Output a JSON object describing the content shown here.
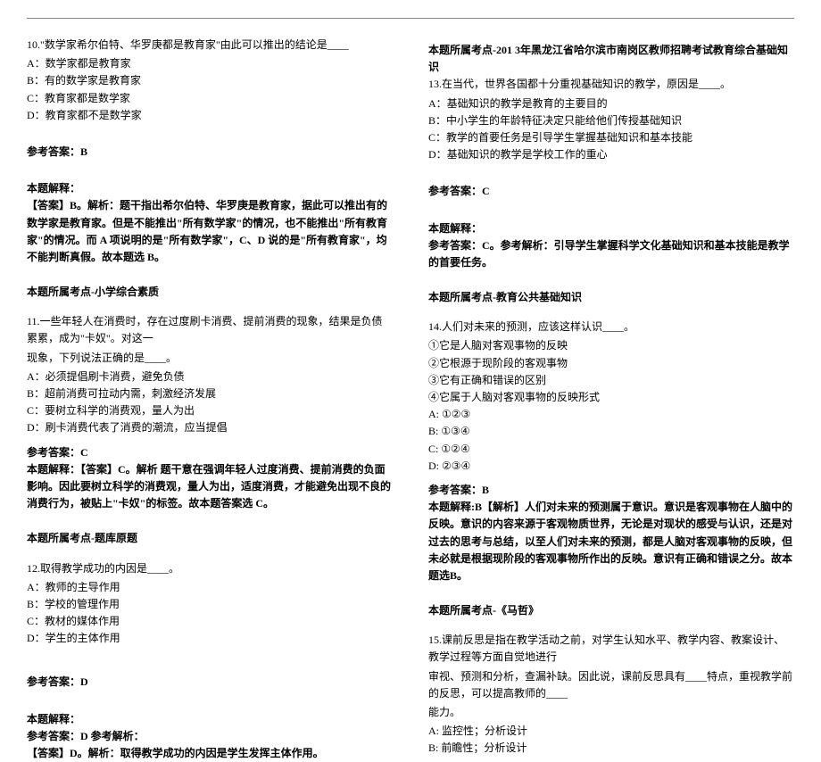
{
  "left": {
    "q10": {
      "stem": "10.\"数学家希尔伯特、华罗庚都是教育家\"由此可以推出的结论是____",
      "opts": [
        "A：数学家都是教育家",
        "B：有的数学家是教育家",
        "C：教育家都是数学家",
        "D：教育家都不是数学家"
      ],
      "ansLabel": "参考答案：B",
      "expLabel": "本题解释：",
      "expText": "【答案】B。解析：题干指出希尔伯特、华罗庚是教育家，据此可以推出有的数学家是教育家。但是不能推出\"所有数学家\"的情况，也不能推出\"所有教育家\"的情况。而 A 项说明的是\"所有数学家\"，C、D 说的是\"所有教育家\"，均不能判断真假。故本题选 B。",
      "source": "本题所属考点-小学综合素质"
    },
    "q11": {
      "stem1": "11.一些年轻人在消费时，存在过度刷卡消费、提前消费的现象，结果是负债累累，成为\"卡奴\"。对这一",
      "stem2": "现象，下列说法正确的是____。",
      "opts": [
        "A：必须提倡刷卡消费，避免负债",
        "B：超前消费可拉动内需，刺激经济发展",
        "C：要树立科学的消费观，量人为出",
        "D：刷卡消费代表了消费的潮流，应当提倡"
      ],
      "ansLabel": "参考答案：C",
      "expText": "本题解释：【答案】C。解析 题干意在强调年轻人过度消费、提前消费的负面影响。因此要树立科学的消费观，量人为出，适度消费，才能避免出现不良的消费行为，被贴上\"卡奴\"的标签。故本题答案选 C。",
      "source": "本题所属考点-题库原题"
    },
    "q12": {
      "stem": "12.取得教学成功的内因是____。",
      "opts": [
        "A：教师的主导作用",
        "B：学校的管理作用",
        "C：教材的媒体作用",
        "D：学生的主体作用"
      ],
      "ansLabel": "参考答案：D",
      "expLabel": "本题解释：",
      "expLine1": "参考答案：D 参考解析：",
      "expLine2": "【答案】D。解析：取得教学成功的内因是学生发挥主体作用。"
    }
  },
  "right": {
    "r1source": "本题所属考点-201 3年黑龙江省哈尔滨市南岗区教师招聘考试教育综合基础知识",
    "q13": {
      "stem": "13.在当代，世界各国都十分重视基础知识的教学，原因是____。",
      "opts": [
        "A：基础知识的教学是教育的主要目的",
        "B：中小学生的年龄特征决定只能给他们传授基础知识",
        "C：教学的首要任务是引导学生掌握基础知识和基本技能",
        "D：基础知识的教学是学校工作的重心"
      ],
      "ansLabel": "参考答案：C",
      "expLabel": "本题解释：",
      "expText": "参考答案：C。参考解析：引导学生掌握科学文化基础知识和基本技能是教学的首要任务。",
      "source": "本题所属考点-教育公共基础知识"
    },
    "q14": {
      "stem": "14.人们对未来的预测，应该这样认识____。",
      "lines": [
        "①它是人脑对客观事物的反映",
        "②它根源于现阶段的客观事物",
        "③它有正确和错误的区别",
        "④它属于人脑对客观事物的反映形式"
      ],
      "opts": [
        "A: ①②③",
        "B: ①③④",
        "C: ①②④",
        "D: ②③④"
      ],
      "ansLabel": "参考答案：B",
      "expText": "本题解释:B【解析】人们对未来的预测属于意识。意识是客观事物在人脑中的反映。意识的内容来源于客观物质世界，无论是对现状的感受与认识，还是对过去的思考与总结，以至人们对未来的预测，都是人脑对客观事物的反映，但未必就是根据现阶段的客观事物所作出的反映。意识有正确和错误之分。故本题选B。",
      "source": "本题所属考点-《马哲》"
    },
    "q15": {
      "stem1": "15.课前反思是指在教学活动之前，对学生认知水平、教学内容、教案设计、教学过程等方面自觉地进行",
      "stem2": "审视、预测和分析，查漏补缺。因此说，课前反思具有____特点，重视教学前的反思，可以提高教师的____",
      "stem3": "能力。",
      "opts": [
        "A: 监控性；分析设计",
        "B: 前瞻性；分析设计"
      ]
    }
  }
}
